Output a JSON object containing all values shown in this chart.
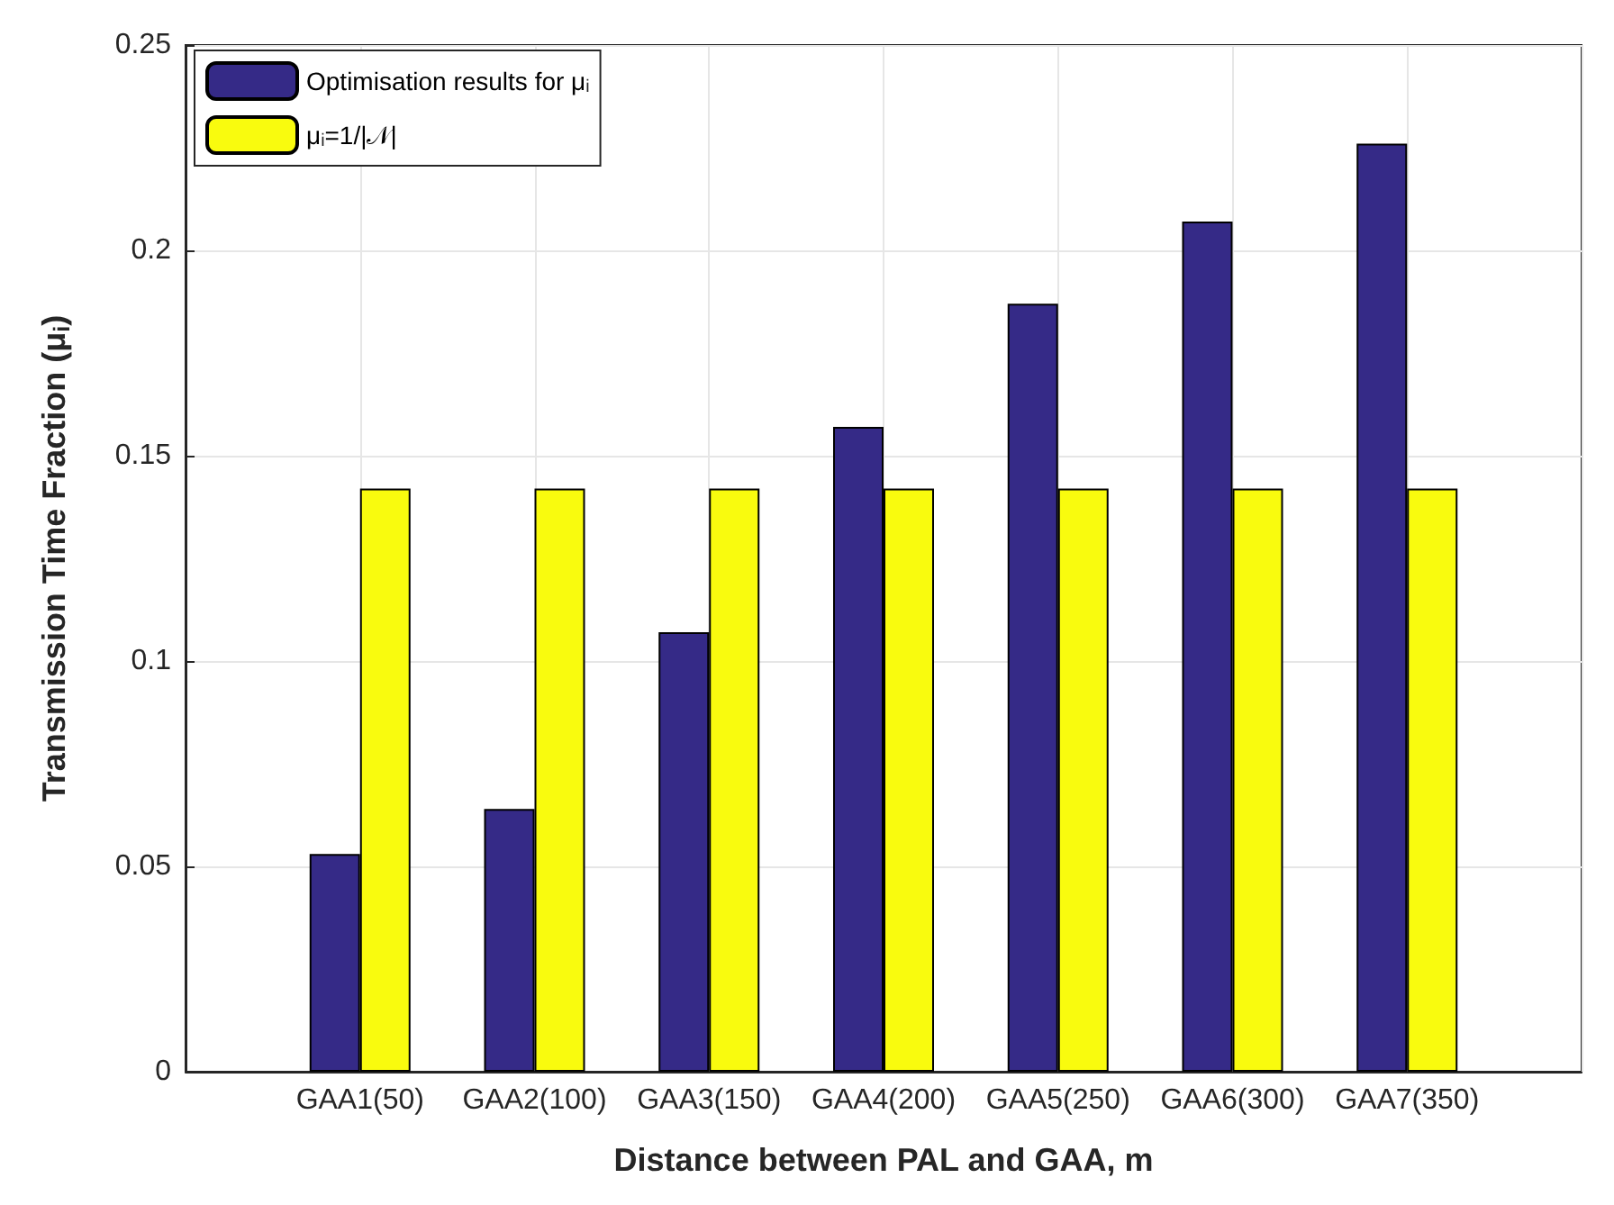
{
  "chart_data": {
    "type": "bar",
    "xlabel": "Distance between PAL and GAA, m",
    "ylabel": "Transmission Time Fraction (μ$_{i}$)",
    "categories": [
      "GAA1(50)",
      "GAA2(100)",
      "GAA3(150)",
      "GAA4(200)",
      "GAA5(250)",
      "GAA6(300)",
      "GAA7(350)"
    ],
    "series": [
      {
        "name": "Optimisation results for μ$_{i}$",
        "color": "#352a87",
        "values": [
          0.053,
          0.064,
          0.107,
          0.157,
          0.187,
          0.207,
          0.226
        ]
      },
      {
        "name": "μ$_{i}$=1/|𝒩|",
        "color": "#f9fb0e",
        "values": [
          0.142,
          0.142,
          0.142,
          0.142,
          0.142,
          0.142,
          0.142
        ]
      }
    ],
    "ylim": [
      0,
      0.25
    ],
    "yticks": [
      0,
      0.05,
      0.1,
      0.15,
      0.2,
      0.25
    ],
    "grid": true,
    "legend": "top left"
  }
}
